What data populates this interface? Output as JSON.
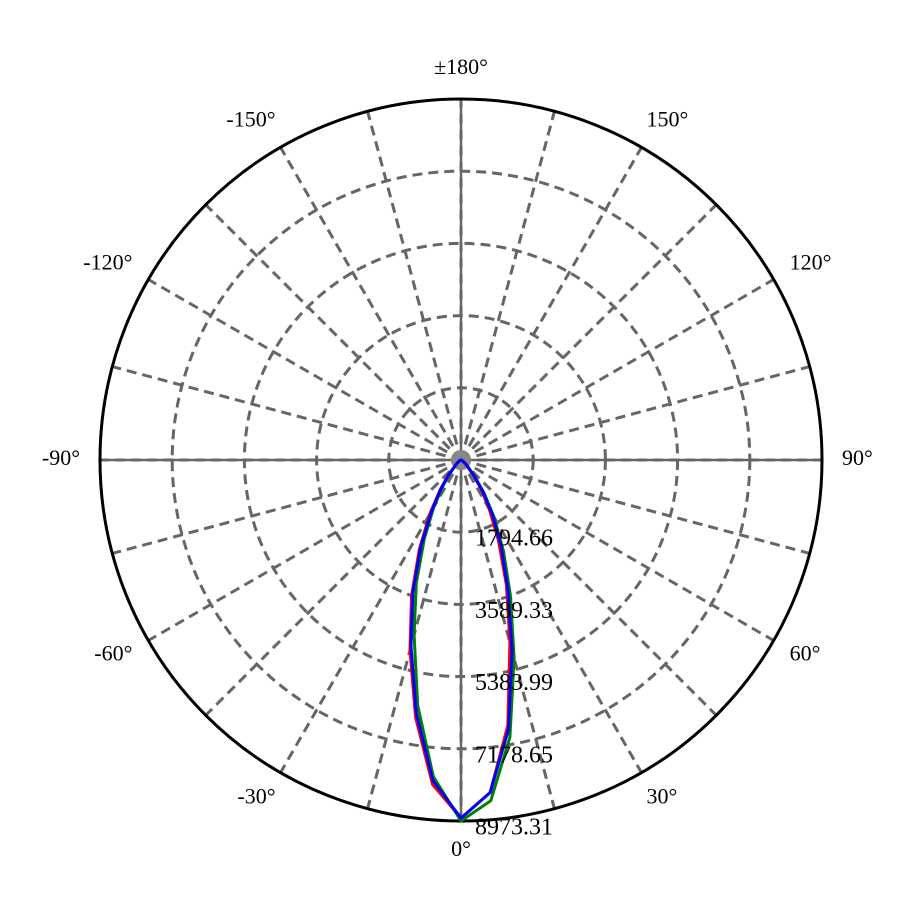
{
  "chart_data": {
    "type": "polar",
    "theta": [
      -90,
      -80,
      -70,
      -60,
      -50,
      -40,
      -35,
      -30,
      -25,
      -20,
      -15,
      -10,
      -5,
      0,
      5,
      10,
      15,
      20,
      25,
      30,
      35,
      40,
      50,
      60,
      70,
      80,
      90
    ],
    "series": [
      {
        "color": "#ff0000",
        "values": [
          0,
          5,
          20,
          60,
          150,
          480,
          900,
          1550,
          2450,
          3600,
          4900,
          6500,
          8100,
          8900,
          8300,
          6700,
          4700,
          3300,
          2200,
          1400,
          850,
          450,
          140,
          50,
          15,
          5,
          0
        ]
      },
      {
        "color": "#008000",
        "values": [
          0,
          5,
          15,
          50,
          130,
          420,
          780,
          1350,
          2150,
          3250,
          4500,
          6200,
          7900,
          8973.31,
          8500,
          7000,
          5100,
          3600,
          2500,
          1650,
          1000,
          520,
          160,
          55,
          20,
          5,
          0
        ]
      },
      {
        "color": "#0000ff",
        "values": [
          0,
          5,
          20,
          55,
          140,
          460,
          860,
          1450,
          2350,
          3500,
          4800,
          6400,
          8000,
          8900,
          8300,
          6800,
          4900,
          3400,
          2350,
          1550,
          920,
          480,
          150,
          50,
          15,
          5,
          0
        ]
      }
    ],
    "rlim": [
      0,
      8973.31
    ],
    "rticks": [
      1794.66,
      3589.33,
      5383.99,
      7178.65,
      8973.31
    ],
    "thetaticks": [
      {
        "value": 0,
        "label": "0°"
      },
      {
        "value": 30,
        "label": "30°"
      },
      {
        "value": 60,
        "label": "60°"
      },
      {
        "value": 90,
        "label": "90°"
      },
      {
        "value": 120,
        "label": "120°"
      },
      {
        "value": 150,
        "label": "150°"
      },
      {
        "value": 180,
        "label": "±180°"
      },
      {
        "value": -150,
        "label": "-150°"
      },
      {
        "value": -120,
        "label": "-120°"
      },
      {
        "value": -90,
        "label": "-90°"
      },
      {
        "value": -60,
        "label": "-60°"
      },
      {
        "value": -30,
        "label": "-30°"
      }
    ],
    "grid": true
  }
}
